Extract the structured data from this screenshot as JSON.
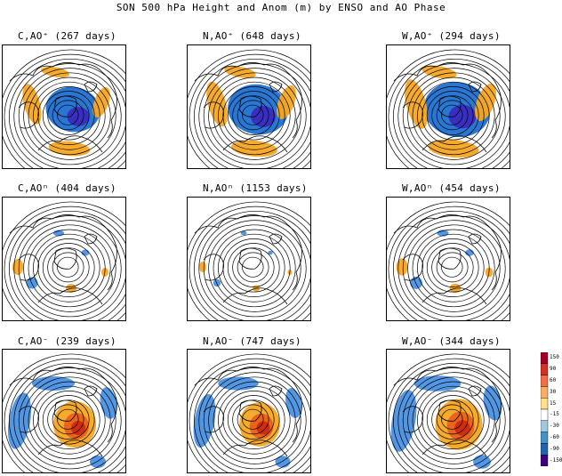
{
  "figure": {
    "title": "SON 500 hPa Height and Anom (m) by ENSO and AO Phase"
  },
  "panels": [
    {
      "label": "C,AO⁺ (267 days)",
      "anomaly_pattern": "ao_positive",
      "intensity": 0.9
    },
    {
      "label": "N,AO⁺ (648 days)",
      "anomaly_pattern": "ao_positive",
      "intensity": 1.0
    },
    {
      "label": "W,AO⁺ (294 days)",
      "anomaly_pattern": "ao_positive",
      "intensity": 1.1
    },
    {
      "label": "C,AOⁿ (404 days)",
      "anomaly_pattern": "neutral",
      "intensity": 0.5
    },
    {
      "label": "N,AOⁿ (1153 days)",
      "anomaly_pattern": "neutral",
      "intensity": 0.25
    },
    {
      "label": "W,AOⁿ (454 days)",
      "anomaly_pattern": "neutral",
      "intensity": 0.55
    },
    {
      "label": "C,AO⁻ (239 days)",
      "anomaly_pattern": "ao_negative",
      "intensity": 1.0
    },
    {
      "label": "N,AO⁻ (747 days)",
      "anomaly_pattern": "ao_negative",
      "intensity": 0.95
    },
    {
      "label": "W,AO⁻ (344 days)",
      "anomaly_pattern": "ao_negative",
      "intensity": 1.1
    }
  ],
  "colorbar": {
    "labels": [
      "150",
      "90",
      "60",
      "30",
      "15",
      "-15",
      "-30",
      "-60",
      "-90",
      "-150"
    ],
    "colors": [
      "#a50026",
      "#d7301f",
      "#f46d43",
      "#fdae61",
      "#fee08b",
      "#ffffff",
      "#9ecae1",
      "#4292c6",
      "#2166ac",
      "#3f007d"
    ]
  }
}
